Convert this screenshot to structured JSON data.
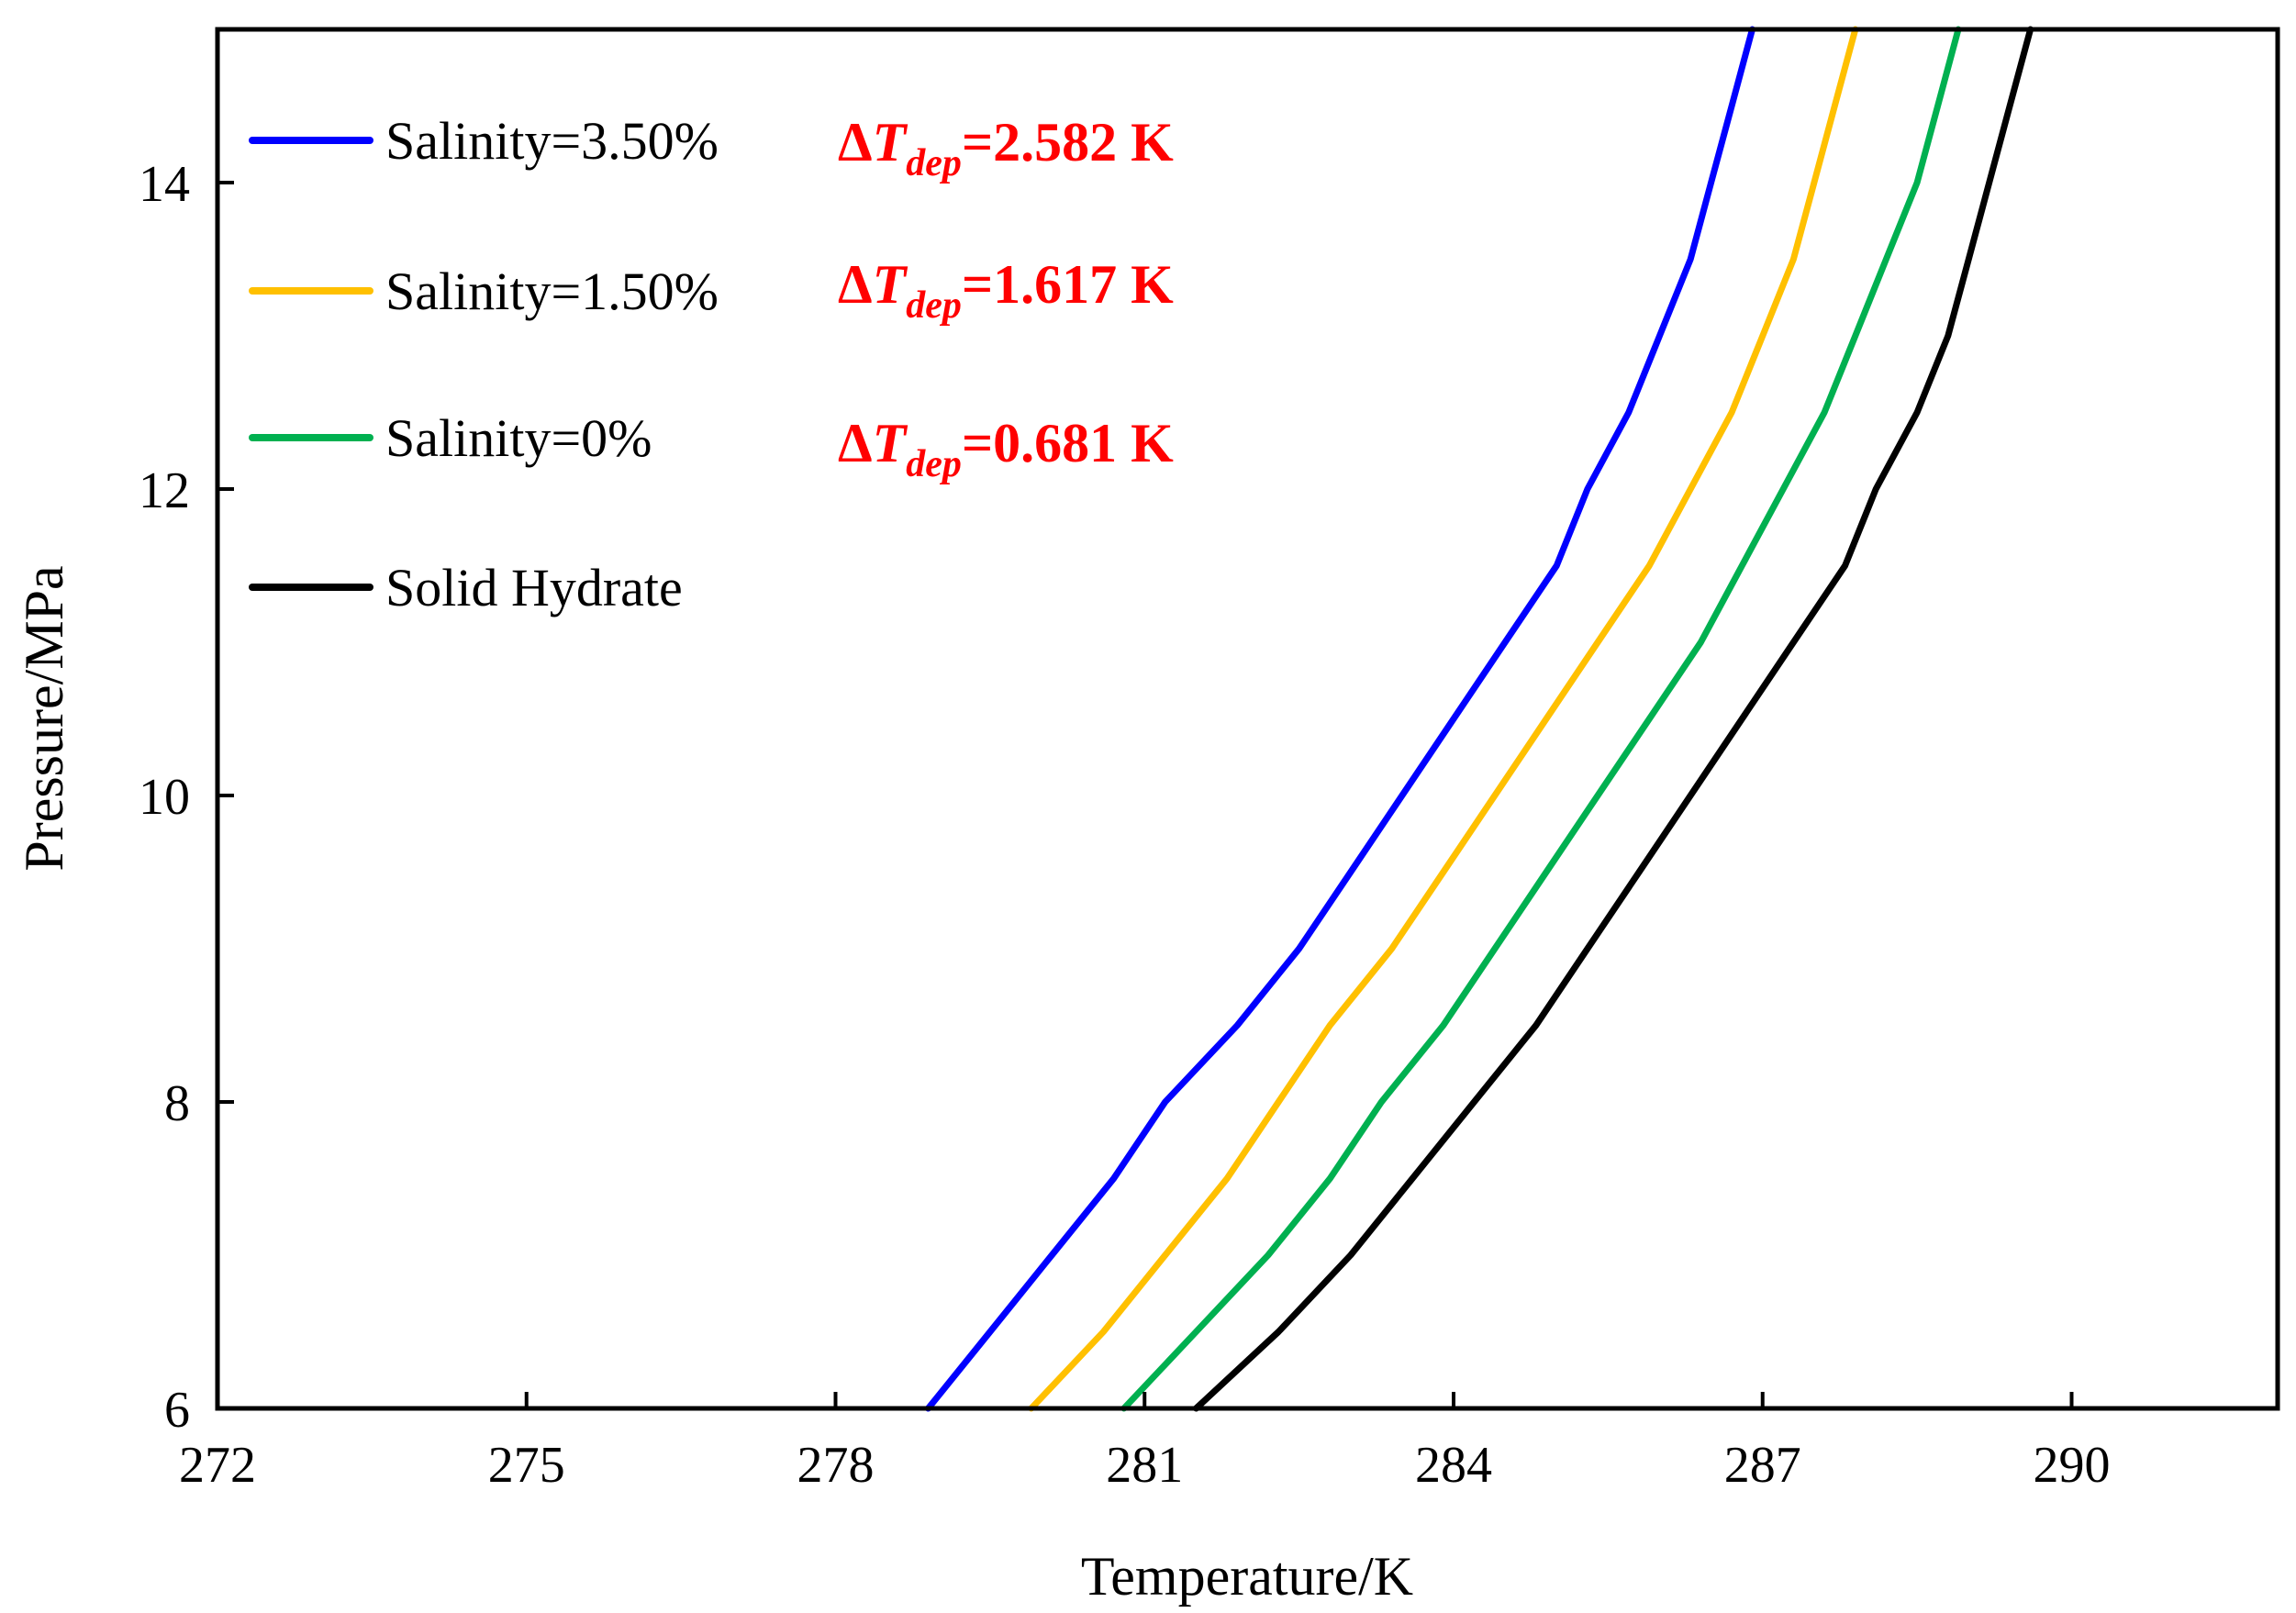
{
  "chart_data": {
    "type": "line",
    "title": "",
    "xlabel": "Temperature/K",
    "ylabel": "Pressure/MPa",
    "xlim": [
      272,
      292
    ],
    "ylim": [
      6,
      15
    ],
    "xticks": [
      "272",
      "275",
      "278",
      "281",
      "284",
      "287",
      "290"
    ],
    "yticks": [
      "6",
      "8",
      "10",
      "12",
      "14"
    ],
    "grid": false,
    "legend_position": "top-left",
    "series": [
      {
        "name": "Salinity=3.50%",
        "color": "#0000ff",
        "points": [
          [
            278.9,
            6.0
          ],
          [
            279.5,
            6.5
          ],
          [
            280.1,
            7.0
          ],
          [
            280.7,
            7.5
          ],
          [
            281.2,
            8.0
          ],
          [
            281.9,
            8.5
          ],
          [
            282.5,
            9.0
          ],
          [
            283.0,
            9.5
          ],
          [
            283.5,
            10.0
          ],
          [
            284.0,
            10.5
          ],
          [
            284.5,
            11.0
          ],
          [
            285.0,
            11.5
          ],
          [
            285.3,
            12.0
          ],
          [
            285.7,
            12.5
          ],
          [
            286.0,
            13.0
          ],
          [
            286.3,
            13.5
          ],
          [
            286.5,
            14.0
          ],
          [
            286.7,
            14.5
          ],
          [
            286.9,
            15.0
          ]
        ]
      },
      {
        "name": "Salinity=1.50%",
        "color": "#ffc000",
        "points": [
          [
            279.9,
            6.0
          ],
          [
            280.6,
            6.5
          ],
          [
            281.2,
            7.0
          ],
          [
            281.8,
            7.5
          ],
          [
            282.3,
            8.0
          ],
          [
            282.8,
            8.5
          ],
          [
            283.4,
            9.0
          ],
          [
            283.9,
            9.5
          ],
          [
            284.4,
            10.0
          ],
          [
            284.9,
            10.5
          ],
          [
            285.4,
            11.0
          ],
          [
            285.9,
            11.5
          ],
          [
            286.3,
            12.0
          ],
          [
            286.7,
            12.5
          ],
          [
            287.0,
            13.0
          ],
          [
            287.3,
            13.5
          ],
          [
            287.5,
            14.0
          ],
          [
            287.7,
            14.5
          ],
          [
            287.9,
            15.0
          ]
        ]
      },
      {
        "name": "Salinity=0%",
        "color": "#00b050",
        "points": [
          [
            280.8,
            6.0
          ],
          [
            281.5,
            6.5
          ],
          [
            282.2,
            7.0
          ],
          [
            282.8,
            7.5
          ],
          [
            283.3,
            8.0
          ],
          [
            283.9,
            8.5
          ],
          [
            284.4,
            9.0
          ],
          [
            284.9,
            9.5
          ],
          [
            285.4,
            10.0
          ],
          [
            285.9,
            10.5
          ],
          [
            286.4,
            11.0
          ],
          [
            286.8,
            11.5
          ],
          [
            287.2,
            12.0
          ],
          [
            287.6,
            12.5
          ],
          [
            287.9,
            13.0
          ],
          [
            288.2,
            13.5
          ],
          [
            288.5,
            14.0
          ],
          [
            288.7,
            14.5
          ],
          [
            288.9,
            15.0
          ]
        ]
      },
      {
        "name": "Solid Hydrate",
        "color": "#000000",
        "points": [
          [
            281.5,
            6.0
          ],
          [
            282.3,
            6.5
          ],
          [
            283.0,
            7.0
          ],
          [
            283.6,
            7.5
          ],
          [
            284.2,
            8.0
          ],
          [
            284.8,
            8.5
          ],
          [
            285.3,
            9.0
          ],
          [
            285.8,
            9.5
          ],
          [
            286.3,
            10.0
          ],
          [
            286.8,
            10.5
          ],
          [
            287.3,
            11.0
          ],
          [
            287.8,
            11.5
          ],
          [
            288.1,
            12.0
          ],
          [
            288.5,
            12.5
          ],
          [
            288.8,
            13.0
          ],
          [
            289.0,
            13.5
          ],
          [
            289.2,
            14.0
          ],
          [
            289.4,
            14.5
          ],
          [
            289.6,
            15.0
          ]
        ]
      }
    ],
    "annotations": [
      {
        "delta": "Δ",
        "var": "T",
        "sub": "dep",
        "value": "=2.582 K",
        "color": "#ff0000"
      },
      {
        "delta": "Δ",
        "var": "T",
        "sub": "dep",
        "value": "=1.617 K",
        "color": "#ff0000"
      },
      {
        "delta": "Δ",
        "var": "T",
        "sub": "dep",
        "value": "=0.681 K",
        "color": "#ff0000"
      }
    ]
  }
}
